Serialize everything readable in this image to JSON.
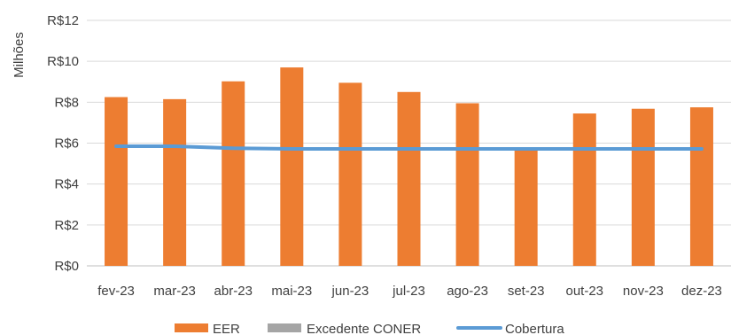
{
  "chart_data": {
    "type": "bar",
    "ylabel": "Milhões",
    "ylim": [
      0,
      12
    ],
    "yticks": [
      "R$0",
      "R$2",
      "R$4",
      "R$6",
      "R$8",
      "R$10",
      "R$12"
    ],
    "ytick_values": [
      0,
      2,
      4,
      6,
      8,
      10,
      12
    ],
    "grid": true,
    "legend_position": "bottom",
    "categories": [
      "fev-23",
      "mar-23",
      "abr-23",
      "mai-23",
      "jun-23",
      "jul-23",
      "ago-23",
      "set-23",
      "out-23",
      "nov-23",
      "dez-23"
    ],
    "series": [
      {
        "name": "EER",
        "type": "bar",
        "color": "#ed7d31",
        "values": [
          8.25,
          8.15,
          9.02,
          9.7,
          8.95,
          8.5,
          7.95,
          5.75,
          7.45,
          7.68,
          7.75
        ]
      },
      {
        "name": "Excedente CONER",
        "type": "bar",
        "color": "#a5a5a5",
        "values": [
          0,
          0,
          0,
          0,
          0,
          0,
          0,
          0,
          0,
          0,
          0
        ]
      },
      {
        "name": "Cobertura",
        "type": "line",
        "color": "#5b9bd5",
        "values": [
          5.85,
          5.85,
          5.75,
          5.72,
          5.72,
          5.72,
          5.72,
          5.72,
          5.72,
          5.72,
          5.72
        ]
      }
    ]
  }
}
